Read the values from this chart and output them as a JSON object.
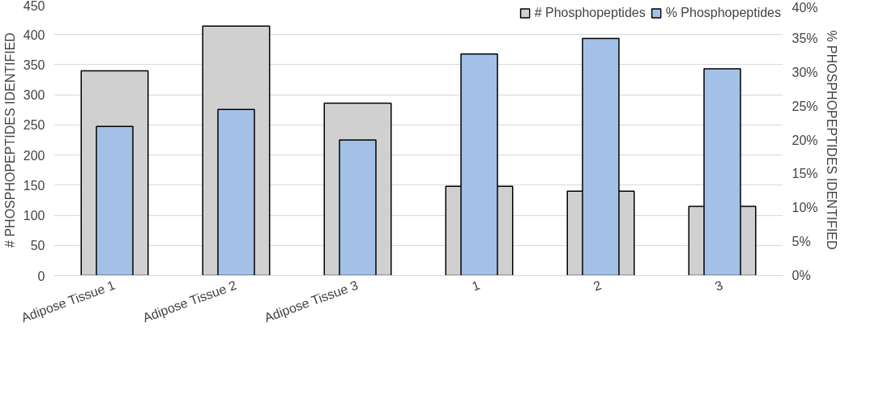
{
  "chart_data": {
    "type": "bar",
    "categories": [
      "Adipose Tissue 1",
      "Adipose Tissue 2",
      "Adipose Tissue 3",
      "1",
      "2",
      "3"
    ],
    "series": [
      {
        "name": "# Phosphopeptides",
        "color": "#d0d0d0",
        "values": [
          340,
          414,
          286,
          148,
          140,
          115
        ]
      },
      {
        "name": "% Phosphopeptides",
        "color": "#a3c1e6",
        "axis": "y2",
        "values": [
          22,
          24.5,
          20,
          32.7,
          35,
          30.5
        ]
      }
    ],
    "ylabel": "# PHOSPHOPEPTIDES IDENTIFIED",
    "y2label": "% PHOSPHOPEPTIDES IDENTIFIED",
    "ylim": [
      0,
      450
    ],
    "yticks": [
      0,
      50,
      100,
      150,
      200,
      250,
      300,
      350,
      400,
      450
    ],
    "y2lim": [
      0,
      40
    ],
    "y2ticks": [
      {
        "value": 0,
        "label": "0%"
      },
      {
        "value": 5,
        "label": "5%"
      },
      {
        "value": 10,
        "label": "10%"
      },
      {
        "value": 15,
        "label": "15%"
      },
      {
        "value": 20,
        "label": "20%"
      },
      {
        "value": 25,
        "label": "25%"
      },
      {
        "value": 30,
        "label": "30%"
      },
      {
        "value": 35,
        "label": "35%"
      },
      {
        "value": 40,
        "label": "40%"
      }
    ],
    "grid": "y",
    "legend": "top right"
  }
}
